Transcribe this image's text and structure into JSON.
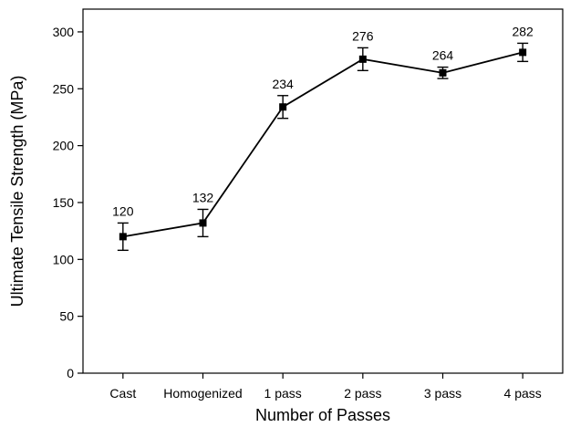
{
  "chart_data": {
    "type": "line",
    "title": "",
    "xlabel": "Number of Passes",
    "ylabel": "Ultimate Tensile Strength (MPa)",
    "categories": [
      "Cast",
      "Homogenized",
      "1 pass",
      "2 pass",
      "3 pass",
      "4 pass"
    ],
    "series": [
      {
        "values": [
          120,
          132,
          234,
          276,
          264,
          282
        ],
        "errors": [
          12,
          12,
          10,
          10,
          5,
          8
        ],
        "value_labels": [
          "120",
          "132",
          "234",
          "276",
          "264",
          "282"
        ],
        "marker": "square",
        "color": "#000000"
      }
    ],
    "ylim": [
      0,
      320
    ],
    "yticks": [
      0,
      50,
      100,
      150,
      200,
      250,
      300
    ],
    "ytick_labels": [
      "0",
      "50",
      "100",
      "150",
      "200",
      "250",
      "300"
    ],
    "grid": false,
    "legend": "none"
  }
}
